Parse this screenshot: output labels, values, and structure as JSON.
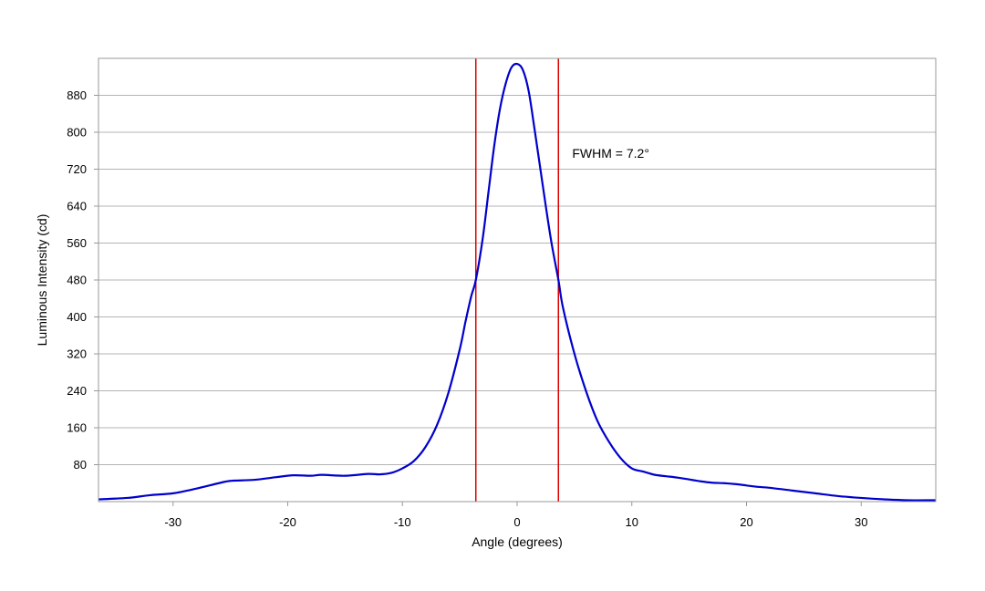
{
  "chart_data": {
    "type": "line",
    "title": "",
    "xlabel": "Angle (degrees)",
    "ylabel": "Luminous Intensity (cd)",
    "xlim": [
      -36.5,
      36.5
    ],
    "ylim": [
      0,
      960
    ],
    "x_ticks": [
      -30,
      -20,
      -10,
      0,
      10,
      20,
      30
    ],
    "y_ticks": [
      80,
      160,
      240,
      320,
      400,
      480,
      560,
      640,
      720,
      800,
      880
    ],
    "grid": "horizontal",
    "legend": "none",
    "annotations": [
      {
        "text": "FWHM = 7.2°",
        "x": 4.8,
        "y": 755
      }
    ],
    "vertical_lines": [
      {
        "x": -3.6,
        "color": "#dd0000"
      },
      {
        "x": 3.6,
        "color": "#dd0000"
      }
    ],
    "series": [
      {
        "color": "#0000cc",
        "points": [
          [
            -36.5,
            5
          ],
          [
            -34,
            8
          ],
          [
            -32,
            14
          ],
          [
            -30,
            18
          ],
          [
            -28,
            28
          ],
          [
            -26,
            40
          ],
          [
            -25,
            45
          ],
          [
            -23,
            47
          ],
          [
            -21,
            53
          ],
          [
            -19.5,
            57
          ],
          [
            -18,
            56
          ],
          [
            -17,
            58
          ],
          [
            -15,
            56
          ],
          [
            -13,
            60
          ],
          [
            -12,
            59
          ],
          [
            -11,
            62
          ],
          [
            -10,
            72
          ],
          [
            -9,
            88
          ],
          [
            -8,
            118
          ],
          [
            -7,
            165
          ],
          [
            -6,
            235
          ],
          [
            -5,
            330
          ],
          [
            -4.5,
            390
          ],
          [
            -4,
            445
          ],
          [
            -3.6,
            480
          ],
          [
            -3,
            570
          ],
          [
            -2.5,
            670
          ],
          [
            -2,
            770
          ],
          [
            -1.5,
            850
          ],
          [
            -1,
            905
          ],
          [
            -0.5,
            940
          ],
          [
            0,
            948
          ],
          [
            0.5,
            935
          ],
          [
            1,
            890
          ],
          [
            1.5,
            810
          ],
          [
            2,
            725
          ],
          [
            2.5,
            640
          ],
          [
            3,
            560
          ],
          [
            3.6,
            480
          ],
          [
            4,
            420
          ],
          [
            5,
            320
          ],
          [
            6,
            240
          ],
          [
            7,
            175
          ],
          [
            8,
            130
          ],
          [
            9,
            95
          ],
          [
            10,
            72
          ],
          [
            11,
            65
          ],
          [
            12,
            58
          ],
          [
            13,
            55
          ],
          [
            14,
            52
          ],
          [
            15,
            48
          ],
          [
            16,
            44
          ],
          [
            17,
            41
          ],
          [
            18,
            40
          ],
          [
            19,
            38
          ],
          [
            20,
            35
          ],
          [
            21,
            32
          ],
          [
            22,
            30
          ],
          [
            24,
            24
          ],
          [
            26,
            18
          ],
          [
            28,
            12
          ],
          [
            30,
            8
          ],
          [
            32,
            5
          ],
          [
            34,
            3
          ],
          [
            36.5,
            3
          ]
        ]
      }
    ]
  }
}
